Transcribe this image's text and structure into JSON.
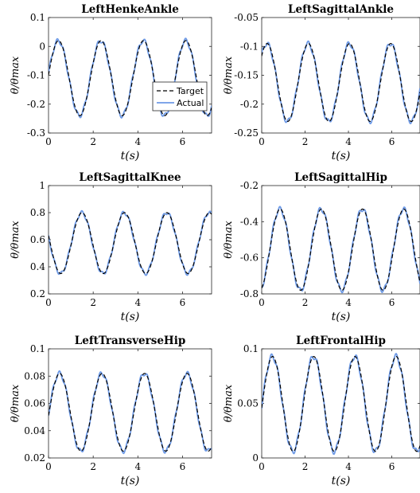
{
  "chart_data": [
    {
      "type": "line",
      "title": "LeftHenkeAnkle",
      "xlabel": "t(s)",
      "ylabel": "θ/θmax",
      "xlim": [
        0,
        7.3
      ],
      "ylim": [
        -0.3,
        0.1
      ],
      "xticks": [
        "0",
        "2",
        "4",
        "6"
      ],
      "yticks": [
        "-0.3",
        "-0.2",
        "-0.1",
        "0",
        "0.1"
      ],
      "wave": {
        "period": 1.9,
        "peak_t": 0.45,
        "max": 0.02,
        "min": -0.24
      },
      "legend": {
        "position": "inside-lower-right",
        "entries": [
          "Target",
          "Actual"
        ]
      },
      "series": [
        {
          "name": "Target",
          "style": "dashed",
          "color": "#000000",
          "x": [
            0,
            0.45,
            1.4,
            2.35,
            3.3,
            4.25,
            5.2,
            6.15,
            7.1,
            7.3
          ],
          "y": [
            -0.15,
            0.02,
            -0.24,
            0.02,
            -0.24,
            0.02,
            -0.24,
            0.02,
            -0.24,
            -0.18
          ]
        },
        {
          "name": "Actual",
          "style": "solid",
          "color": "#6e9ae6",
          "x": [
            0,
            0.45,
            1.4,
            2.35,
            3.3,
            4.25,
            5.2,
            6.15,
            7.1,
            7.3
          ],
          "y": [
            -0.16,
            0.02,
            -0.24,
            0.02,
            -0.24,
            0.02,
            -0.24,
            0.02,
            -0.23,
            -0.15
          ]
        }
      ]
    },
    {
      "type": "line",
      "title": "LeftSagittalAnkle",
      "xlabel": "t(s)",
      "ylabel": "θ/θmax",
      "xlim": [
        0,
        7.3
      ],
      "ylim": [
        -0.25,
        -0.05
      ],
      "xticks": [
        "0",
        "2",
        "4",
        "6"
      ],
      "yticks": [
        "-0.25",
        "-0.2",
        "-0.15",
        "-0.1",
        "-0.05"
      ],
      "wave": {
        "period": 1.9,
        "peak_t": 0.25,
        "max": -0.095,
        "min": -0.23
      },
      "series": [
        {
          "name": "Target",
          "style": "dashed",
          "color": "#000000",
          "x": [
            0,
            0.25,
            1.2,
            2.15,
            3.1,
            4.05,
            5.0,
            5.95,
            6.9,
            7.3
          ],
          "y": [
            -0.12,
            -0.095,
            -0.23,
            -0.095,
            -0.23,
            -0.095,
            -0.23,
            -0.095,
            -0.23,
            -0.12
          ]
        },
        {
          "name": "Actual",
          "style": "solid",
          "color": "#6e9ae6",
          "x": [
            0,
            0.25,
            1.2,
            2.15,
            3.1,
            4.05,
            5.0,
            5.95,
            6.9,
            7.3
          ],
          "y": [
            -0.12,
            -0.1,
            -0.23,
            -0.1,
            -0.23,
            -0.1,
            -0.23,
            -0.1,
            -0.23,
            -0.11
          ]
        }
      ]
    },
    {
      "type": "line",
      "title": "LeftSagittalKnee",
      "xlabel": "t(s)",
      "ylabel": "θ/θmax",
      "xlim": [
        0,
        7.3
      ],
      "ylim": [
        0.2,
        1.0
      ],
      "xticks": [
        "0",
        "2",
        "4",
        "6"
      ],
      "yticks": [
        "0.2",
        "0.4",
        "0.6",
        "0.8",
        "1"
      ],
      "wave": {
        "period": 1.9,
        "peak_t": 1.5,
        "max": 0.8,
        "min": 0.35
      },
      "series": [
        {
          "name": "Target",
          "style": "dashed",
          "color": "#000000",
          "x": [
            0,
            0.55,
            1.5,
            2.45,
            3.4,
            4.35,
            5.3,
            6.25,
            7.2,
            7.3
          ],
          "y": [
            0.58,
            0.35,
            0.8,
            0.35,
            0.8,
            0.35,
            0.8,
            0.35,
            0.8,
            0.57
          ]
        },
        {
          "name": "Actual",
          "style": "solid",
          "color": "#6e9ae6",
          "x": [
            0,
            0.55,
            1.5,
            2.45,
            3.4,
            4.35,
            5.3,
            6.25,
            7.2,
            7.3
          ],
          "y": [
            0.58,
            0.36,
            0.8,
            0.36,
            0.8,
            0.36,
            0.8,
            0.36,
            0.8,
            0.57
          ]
        }
      ]
    },
    {
      "type": "line",
      "title": "LeftSagittalHip",
      "xlabel": "t(s)",
      "ylabel": "θ/θmax",
      "xlim": [
        0,
        7.3
      ],
      "ylim": [
        -0.8,
        -0.2
      ],
      "xticks": [
        "0",
        "2",
        "4",
        "6"
      ],
      "yticks": [
        "-0.8",
        "-0.6",
        "-0.4",
        "-0.2"
      ],
      "wave": {
        "period": 1.9,
        "peak_t": 0.85,
        "max": -0.33,
        "min": -0.78
      },
      "series": [
        {
          "name": "Target",
          "style": "dashed",
          "color": "#000000",
          "x": [
            0,
            0.85,
            1.8,
            2.75,
            3.7,
            4.65,
            5.6,
            6.55,
            7.3
          ],
          "y": [
            -0.6,
            -0.33,
            -0.78,
            -0.33,
            -0.78,
            -0.33,
            -0.78,
            -0.33,
            -0.6
          ]
        },
        {
          "name": "Actual",
          "style": "solid",
          "color": "#6e9ae6",
          "x": [
            0,
            0.85,
            1.8,
            2.75,
            3.7,
            4.65,
            5.6,
            6.55,
            7.3
          ],
          "y": [
            -0.6,
            -0.34,
            -0.77,
            -0.34,
            -0.77,
            -0.34,
            -0.77,
            -0.34,
            -0.58
          ]
        }
      ]
    },
    {
      "type": "line",
      "title": "LeftTransverseHip",
      "xlabel": "t(s)",
      "ylabel": "θ/θmax",
      "xlim": [
        0,
        7.3
      ],
      "ylim": [
        0.02,
        0.1
      ],
      "xticks": [
        "0",
        "2",
        "4",
        "6"
      ],
      "yticks": [
        "0.02",
        "0.04",
        "0.06",
        "0.08",
        "0.1"
      ],
      "wave": {
        "period": 1.9,
        "peak_t": 0.5,
        "max": 0.082,
        "min": 0.025
      },
      "series": [
        {
          "name": "Target",
          "style": "dashed",
          "color": "#000000",
          "x": [
            0,
            0.5,
            1.45,
            2.4,
            3.35,
            4.3,
            5.25,
            6.2,
            7.15,
            7.3
          ],
          "y": [
            0.035,
            0.082,
            0.025,
            0.082,
            0.025,
            0.082,
            0.025,
            0.082,
            0.025,
            0.05
          ]
        },
        {
          "name": "Actual",
          "style": "solid",
          "color": "#6e9ae6",
          "x": [
            0,
            0.5,
            1.45,
            2.4,
            3.35,
            4.3,
            5.25,
            6.2,
            7.15,
            7.3
          ],
          "y": [
            0.03,
            0.078,
            0.025,
            0.076,
            0.025,
            0.076,
            0.025,
            0.076,
            0.03,
            0.055
          ]
        }
      ]
    },
    {
      "type": "line",
      "title": "LeftFrontalHip",
      "xlabel": "t(s)",
      "ylabel": "θ/θmax",
      "xlim": [
        0,
        7.3
      ],
      "ylim": [
        0,
        0.1
      ],
      "xticks": [
        "0",
        "2",
        "4",
        "6"
      ],
      "yticks": [
        "0",
        "0.05",
        "0.1"
      ],
      "wave": {
        "period": 1.9,
        "peak_t": 0.5,
        "max": 0.093,
        "min": 0.006
      },
      "series": [
        {
          "name": "Target",
          "style": "dashed",
          "color": "#000000",
          "x": [
            0,
            0.5,
            1.45,
            2.4,
            3.35,
            4.3,
            5.25,
            6.2,
            7.15,
            7.3
          ],
          "y": [
            0.045,
            0.093,
            0.006,
            0.093,
            0.006,
            0.093,
            0.006,
            0.093,
            0.006,
            0.05
          ]
        },
        {
          "name": "Actual",
          "style": "solid",
          "color": "#6e9ae6",
          "x": [
            0,
            0.5,
            1.45,
            2.4,
            3.35,
            4.3,
            5.25,
            6.2,
            7.15,
            7.3
          ],
          "y": [
            0.044,
            0.092,
            0.007,
            0.092,
            0.007,
            0.092,
            0.007,
            0.092,
            0.007,
            0.049
          ]
        }
      ]
    }
  ]
}
